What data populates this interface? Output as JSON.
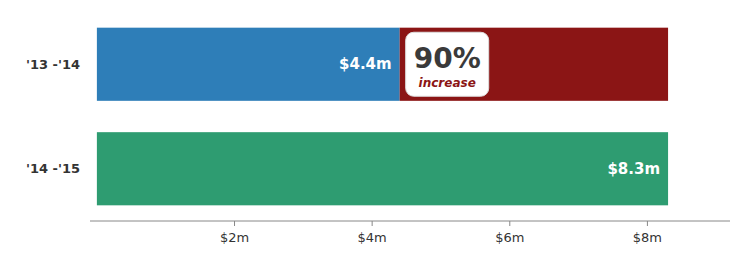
{
  "chart_data": {
    "type": "bar",
    "orientation": "horizontal",
    "categories": [
      "'13 -'14",
      "'14 -'15"
    ],
    "values": [
      4.4,
      8.3
    ],
    "value_labels": [
      "$4.4m",
      "$8.3m"
    ],
    "data_labels": true,
    "colors": [
      "#2e7eb8",
      "#2e9c71"
    ],
    "xlim": [
      -0.1,
      9.2
    ],
    "xticks": [
      {
        "value": 2,
        "label": "$2m"
      },
      {
        "value": 4,
        "label": "$4m"
      },
      {
        "value": 6,
        "label": "$6m"
      },
      {
        "value": 8,
        "label": "$8m"
      }
    ],
    "grid": false,
    "annotations": [
      {
        "text": "90%"
      },
      {
        "text": "increase",
        "color": "#8b1515"
      }
    ]
  }
}
